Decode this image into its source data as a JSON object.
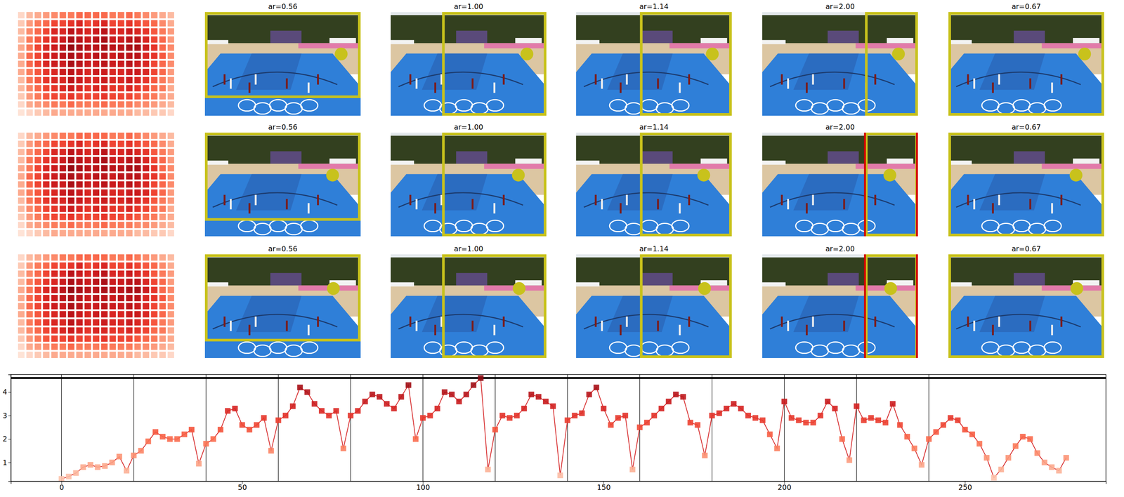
{
  "chart_data": [
    {
      "type": "heatmap",
      "cells": [
        [
          0.15,
          0.25,
          0.3,
          0.35,
          0.4,
          0.45,
          0.45,
          0.5,
          0.5,
          0.5,
          0.5,
          0.45,
          0.45,
          0.5,
          0.45,
          0.4,
          0.35,
          0.3,
          0.25
        ],
        [
          0.2,
          0.35,
          0.45,
          0.5,
          0.6,
          0.6,
          0.65,
          0.7,
          0.6,
          0.65,
          0.7,
          0.6,
          0.6,
          0.65,
          0.6,
          0.55,
          0.5,
          0.4,
          0.3
        ],
        [
          0.25,
          0.4,
          0.5,
          0.6,
          0.7,
          0.7,
          0.8,
          0.75,
          0.7,
          0.75,
          0.8,
          0.7,
          0.7,
          0.75,
          0.7,
          0.65,
          0.55,
          0.45,
          0.35
        ],
        [
          0.25,
          0.45,
          0.55,
          0.65,
          0.7,
          0.75,
          0.85,
          0.8,
          0.75,
          0.8,
          0.85,
          0.75,
          0.75,
          0.8,
          0.8,
          0.7,
          0.6,
          0.5,
          0.35
        ],
        [
          0.3,
          0.45,
          0.6,
          0.7,
          0.75,
          0.8,
          0.9,
          0.85,
          0.8,
          0.8,
          0.85,
          0.8,
          0.8,
          0.85,
          0.85,
          0.75,
          0.65,
          0.5,
          0.4
        ],
        [
          0.3,
          0.5,
          0.6,
          0.7,
          0.75,
          0.8,
          0.85,
          0.8,
          0.75,
          0.8,
          0.8,
          0.75,
          0.8,
          0.8,
          0.8,
          0.7,
          0.65,
          0.55,
          0.4
        ],
        [
          0.3,
          0.5,
          0.6,
          0.7,
          0.75,
          0.75,
          0.85,
          0.8,
          0.75,
          0.75,
          0.8,
          0.75,
          0.75,
          0.8,
          0.75,
          0.7,
          0.6,
          0.5,
          0.4
        ],
        [
          0.3,
          0.45,
          0.55,
          0.65,
          0.7,
          0.75,
          0.8,
          0.75,
          0.7,
          0.75,
          0.75,
          0.7,
          0.7,
          0.75,
          0.75,
          0.7,
          0.6,
          0.5,
          0.35
        ],
        [
          0.25,
          0.45,
          0.55,
          0.65,
          0.7,
          0.7,
          0.8,
          0.75,
          0.7,
          0.7,
          0.75,
          0.7,
          0.7,
          0.75,
          0.7,
          0.65,
          0.55,
          0.45,
          0.35
        ],
        [
          0.25,
          0.4,
          0.5,
          0.6,
          0.65,
          0.7,
          0.75,
          0.7,
          0.65,
          0.7,
          0.7,
          0.65,
          0.65,
          0.7,
          0.65,
          0.6,
          0.5,
          0.45,
          0.3
        ],
        [
          0.2,
          0.35,
          0.45,
          0.55,
          0.6,
          0.6,
          0.65,
          0.6,
          0.6,
          0.6,
          0.65,
          0.6,
          0.6,
          0.6,
          0.55,
          0.5,
          0.45,
          0.35,
          0.3
        ],
        [
          0.15,
          0.3,
          0.35,
          0.4,
          0.45,
          0.45,
          0.5,
          0.45,
          0.45,
          0.45,
          0.5,
          0.45,
          0.45,
          0.45,
          0.4,
          0.4,
          0.35,
          0.3,
          0.25
        ],
        [
          0.1,
          0.15,
          0.2,
          0.25,
          0.3,
          0.3,
          0.3,
          0.3,
          0.3,
          0.3,
          0.3,
          0.3,
          0.3,
          0.3,
          0.25,
          0.25,
          0.2,
          0.2,
          0.15
        ]
      ]
    },
    {
      "type": "crops",
      "rows": [
        {
          "point": [
            0.875,
            0.405
          ],
          "panels": [
            {
              "title": "ar=0.56",
              "box": [
                0,
                0,
                1,
                0.83
              ]
            },
            {
              "title": "ar=1.00",
              "box": [
                0.33,
                0,
                1,
                1
              ]
            },
            {
              "title": "ar=1.14",
              "box": [
                0.41,
                0,
                1,
                1
              ]
            },
            {
              "title": "ar=2.00",
              "box": [
                0.66,
                0,
                1,
                1
              ]
            },
            {
              "title": "ar=0.67",
              "box": [
                0,
                0,
                1,
                1
              ]
            }
          ]
        },
        {
          "point": [
            0.82,
            0.41
          ],
          "panels": [
            {
              "title": "ar=0.56",
              "box": [
                0,
                0,
                1,
                0.85
              ]
            },
            {
              "title": "ar=1.00",
              "box": [
                0.33,
                0,
                1,
                1
              ]
            },
            {
              "title": "ar=1.14",
              "box": [
                0.41,
                0,
                1,
                1
              ]
            },
            {
              "title": "ar=2.00",
              "box": [
                0.66,
                0,
                1,
                1
              ],
              "red_lines": [
                0.66,
                1
              ]
            },
            {
              "title": "ar=0.67",
              "box": [
                0,
                0,
                1,
                1
              ]
            }
          ]
        },
        {
          "point": [
            0.825,
            0.33
          ],
          "panels": [
            {
              "title": "ar=0.56",
              "box": [
                0,
                0,
                1,
                0.84
              ]
            },
            {
              "title": "ar=1.00",
              "box": [
                0.33,
                0,
                1,
                1
              ]
            },
            {
              "title": "ar=1.14",
              "box": [
                0.41,
                0,
                1,
                1
              ]
            },
            {
              "title": "ar=2.00",
              "box": [
                0.66,
                0,
                1,
                1
              ],
              "red_lines": [
                0.66,
                1
              ]
            },
            {
              "title": "ar=0.67",
              "box": [
                0,
                0,
                1,
                1
              ]
            }
          ]
        }
      ]
    },
    {
      "type": "line",
      "color": "#d62728",
      "marker": "square",
      "x": [
        0,
        2,
        4,
        6,
        8,
        10,
        12,
        14,
        16,
        18,
        20,
        22,
        24,
        26,
        28,
        30,
        32,
        34,
        36,
        38,
        40,
        42,
        44,
        46,
        48,
        50,
        52,
        54,
        56,
        58,
        60,
        62,
        64,
        66,
        68,
        70,
        72,
        74,
        76,
        78,
        80,
        82,
        84,
        86,
        88,
        90,
        92,
        94,
        96,
        98,
        100,
        102,
        104,
        106,
        108,
        110,
        112,
        114,
        116,
        118,
        120,
        122,
        124,
        126,
        128,
        130,
        132,
        134,
        136,
        138,
        140,
        142,
        144,
        146,
        148,
        150,
        152,
        154,
        156,
        158,
        160,
        162,
        164,
        166,
        168,
        170,
        172,
        174,
        176,
        178,
        180,
        182,
        184,
        186,
        188,
        190,
        192,
        194,
        196,
        198,
        200,
        202,
        204,
        206,
        208,
        210,
        212,
        214,
        216,
        218,
        220,
        222,
        224,
        226,
        228,
        230,
        232,
        234,
        236,
        238,
        240,
        242,
        244,
        246,
        248,
        250,
        252,
        254,
        256,
        258,
        260,
        262,
        264,
        266,
        268,
        270,
        272,
        274,
        276,
        278
      ],
      "values": [
        0.3,
        0.4,
        0.55,
        0.8,
        0.9,
        0.8,
        0.85,
        1.0,
        1.25,
        0.65,
        1.3,
        1.5,
        1.9,
        2.3,
        2.1,
        2.0,
        2.0,
        2.2,
        2.4,
        0.95,
        1.8,
        2.0,
        2.4,
        3.2,
        3.3,
        2.6,
        2.4,
        2.6,
        2.9,
        1.5,
        2.8,
        3.0,
        3.4,
        4.2,
        4.0,
        3.5,
        3.2,
        3.0,
        3.2,
        1.6,
        3.0,
        3.2,
        3.6,
        3.9,
        3.8,
        3.5,
        3.3,
        3.8,
        4.3,
        2.0,
        2.9,
        3.0,
        3.3,
        4.0,
        3.9,
        3.6,
        3.9,
        4.3,
        4.6,
        0.7,
        2.4,
        3.0,
        2.9,
        3.0,
        3.3,
        3.9,
        3.8,
        3.6,
        3.4,
        0.45,
        2.8,
        3.0,
        3.1,
        3.9,
        4.2,
        3.3,
        2.6,
        2.9,
        3.0,
        0.7,
        2.5,
        2.7,
        3.0,
        3.3,
        3.6,
        3.9,
        3.8,
        2.7,
        2.6,
        1.3,
        3.0,
        3.1,
        3.3,
        3.5,
        3.3,
        3.0,
        2.9,
        2.8,
        2.2,
        1.6,
        3.6,
        2.9,
        2.8,
        2.7,
        2.7,
        3.0,
        3.6,
        3.3,
        2.0,
        1.1,
        3.4,
        2.8,
        2.9,
        2.8,
        2.7,
        3.5,
        2.6,
        2.1,
        1.6,
        0.9,
        2.0,
        2.3,
        2.6,
        2.9,
        2.8,
        2.4,
        2.2,
        1.8,
        1.2,
        0.35,
        0.7,
        1.2,
        1.7,
        2.1,
        2.0,
        1.4,
        1.0,
        0.8,
        0.65,
        1.2
      ],
      "xlim": [
        -14,
        289
      ],
      "ylim": [
        0.2,
        4.75
      ],
      "xticks": [
        0,
        50,
        100,
        150,
        200,
        250
      ],
      "yticks": [
        1,
        2,
        3,
        4
      ],
      "vlines": [
        0,
        20,
        40,
        60,
        80,
        100,
        120,
        140,
        160,
        180,
        200,
        220,
        240
      ],
      "hline": 4.6
    }
  ]
}
